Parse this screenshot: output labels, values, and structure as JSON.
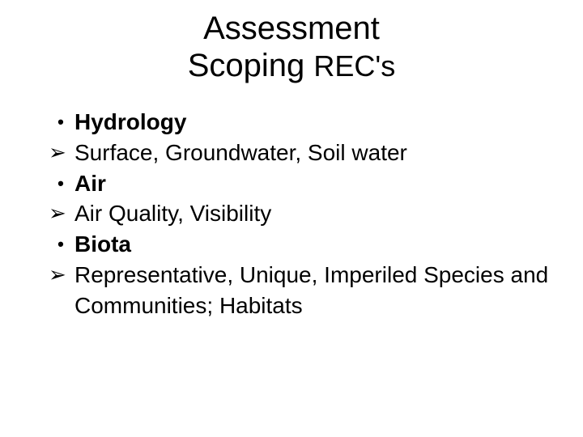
{
  "title": {
    "line1": "Assessment",
    "line2_main": "Scoping ",
    "line2_suffix": "REC's"
  },
  "bullets": {
    "dot_glyph": "•",
    "arrow_glyph": "➢"
  },
  "items": [
    {
      "type": "heading",
      "text": "Hydrology"
    },
    {
      "type": "sub",
      "text": "Surface, Groundwater, Soil water"
    },
    {
      "type": "heading",
      "text": "Air"
    },
    {
      "type": "sub",
      "text": "Air Quality, Visibility"
    },
    {
      "type": "heading",
      "text": "Biota"
    },
    {
      "type": "sub",
      "text": "Representative, Unique, Imperiled Species and Communities; Habitats"
    }
  ],
  "styles": {
    "background_color": "#ffffff",
    "text_color": "#000000",
    "title_fontsize": 40,
    "title_suffix_fontsize": 36,
    "body_fontsize": 28,
    "font_family": "Arial"
  }
}
